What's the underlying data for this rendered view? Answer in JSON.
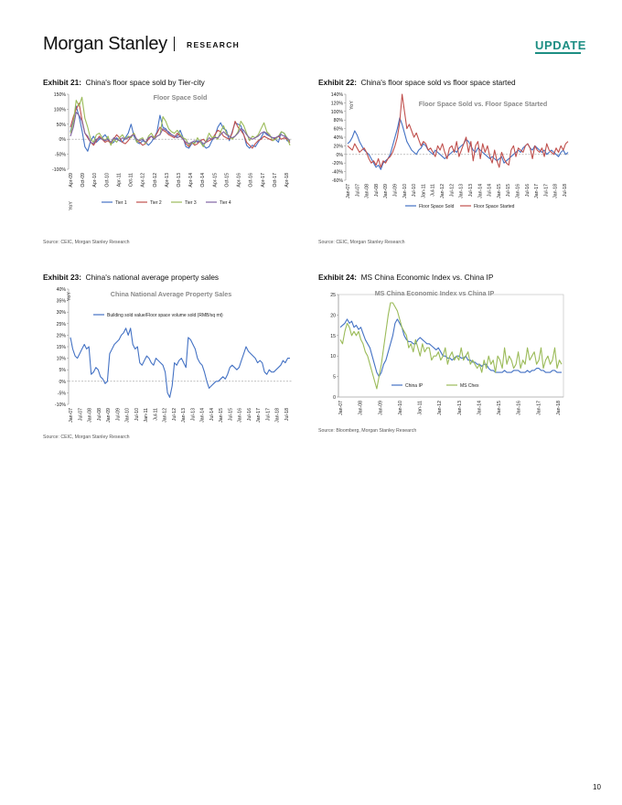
{
  "header": {
    "brand": "Morgan Stanley",
    "section": "RESEARCH",
    "badge": "UPDATE"
  },
  "page_number": "10",
  "colors": {
    "blue": "#4472c4",
    "red": "#c0504d",
    "green": "#9bbb59",
    "purple": "#8064a2",
    "teal": "#1d8e83"
  },
  "exhibits": [
    {
      "label": "Exhibit 21:",
      "title": "China's floor space sold by Tier-city",
      "source": "Source: CEIC, Morgan Stanley Research"
    },
    {
      "label": "Exhibit 22:",
      "title": "China's floor space sold vs floor space started",
      "source": "Source: CEIC, Morgan Stanley Research"
    },
    {
      "label": "Exhibit 23:",
      "title": "China's national average property sales",
      "source": "Source: CEIC, Morgan Stanley Research"
    },
    {
      "label": "Exhibit 24:",
      "title": "MS China Economic Index vs. China IP",
      "source": "Source: Bloomberg, Morgan Stanley Research"
    }
  ],
  "chart_data": [
    {
      "type": "line",
      "title": "Floor Space Sold",
      "ylabel": "YoY",
      "ylim": [
        -100,
        150
      ],
      "yticks": [
        "150%",
        "100%",
        "50%",
        "0%",
        "-50%",
        "-100%"
      ],
      "xticklabels": [
        "Apr-09",
        "Oct-09",
        "Apr-10",
        "Oct-10",
        "Apr-11",
        "Oct-11",
        "Apr-12",
        "Oct-12",
        "Apr-13",
        "Oct-13",
        "Apr-14",
        "Oct-14",
        "Apr-15",
        "Oct-15",
        "Apr-16",
        "Oct-16",
        "Apr-17",
        "Oct-17",
        "Apr-18"
      ],
      "x_start": "2009-04",
      "legend_position": "bottom-center",
      "series": [
        {
          "name": "Tier 1",
          "color": "#4472c4",
          "values": [
            25,
            60,
            110,
            75,
            30,
            -25,
            -40,
            -5,
            10,
            -10,
            0,
            5,
            15,
            0,
            -15,
            -10,
            5,
            -5,
            -10,
            5,
            20,
            50,
            10,
            -10,
            -15,
            -5,
            -10,
            -20,
            -10,
            5,
            25,
            80,
            40,
            35,
            20,
            15,
            10,
            10,
            30,
            5,
            -25,
            -30,
            -15,
            -10,
            -5,
            -10,
            -20,
            -30,
            -25,
            -5,
            10,
            40,
            55,
            35,
            30,
            -5,
            25,
            55,
            50,
            45,
            15,
            -20,
            -30,
            -20,
            -25,
            -10,
            5,
            25,
            15,
            10,
            5,
            0,
            -10,
            25,
            20,
            -5,
            -10
          ]
        },
        {
          "name": "Tier 2",
          "color": "#c0504d",
          "values": [
            40,
            75,
            100,
            120,
            65,
            20,
            5,
            -10,
            -20,
            -5,
            10,
            0,
            -10,
            -5,
            -15,
            0,
            15,
            5,
            -10,
            -15,
            -5,
            10,
            20,
            -5,
            -10,
            -20,
            -15,
            0,
            10,
            5,
            20,
            40,
            30,
            25,
            15,
            10,
            5,
            20,
            10,
            0,
            -15,
            -25,
            -10,
            -20,
            -15,
            -5,
            0,
            -10,
            -5,
            0,
            15,
            30,
            25,
            10,
            5,
            0,
            20,
            60,
            40,
            30,
            15,
            -10,
            -20,
            -30,
            -15,
            -5,
            0,
            10,
            5,
            0,
            -5,
            5,
            10,
            0,
            5,
            0,
            -10
          ]
        },
        {
          "name": "Tier 3",
          "color": "#9bbb59",
          "values": [
            20,
            55,
            130,
            110,
            140,
            70,
            40,
            0,
            -10,
            15,
            20,
            5,
            -5,
            10,
            -20,
            0,
            -10,
            5,
            15,
            0,
            10,
            5,
            20,
            -10,
            0,
            5,
            -15,
            10,
            20,
            5,
            10,
            15,
            75,
            60,
            35,
            25,
            20,
            30,
            15,
            5,
            0,
            -20,
            -10,
            -15,
            5,
            -10,
            -25,
            -5,
            20,
            5,
            10,
            0,
            25,
            45,
            20,
            10,
            0,
            10,
            25,
            60,
            45,
            20,
            -5,
            10,
            5,
            15,
            35,
            55,
            25,
            15,
            -5,
            0,
            10,
            25,
            20,
            5,
            -20
          ]
        },
        {
          "name": "Tier 4",
          "color": "#8064a2",
          "values": [
            10,
            40,
            90,
            80,
            60,
            20,
            10,
            -10,
            -15,
            0,
            5,
            0,
            -5,
            0,
            -10,
            5,
            0,
            -5,
            5,
            0,
            5,
            10,
            15,
            0,
            -5,
            0,
            -10,
            5,
            10,
            0,
            10,
            15,
            35,
            30,
            25,
            15,
            10,
            5,
            10,
            0,
            -10,
            -15,
            -10,
            -5,
            -10,
            -5,
            -15,
            -10,
            5,
            0,
            5,
            5,
            15,
            25,
            15,
            10,
            5,
            10,
            20,
            35,
            30,
            15,
            5,
            0,
            5,
            10,
            20,
            25,
            20,
            10,
            5,
            5,
            10,
            15,
            10,
            5,
            -5
          ]
        }
      ]
    },
    {
      "type": "line",
      "title": "Floor Space Sold vs. Floor Space Started",
      "ylabel": "YoY",
      "ylim": [
        -60,
        140
      ],
      "yticks": [
        "140%",
        "120%",
        "100%",
        "80%",
        "60%",
        "40%",
        "20%",
        "0%",
        "-20%",
        "-40%",
        "-60%"
      ],
      "xticklabels": [
        "Jan-07",
        "Jul-07",
        "Jan-08",
        "Jul-08",
        "Jan-09",
        "Jul-09",
        "Jan-10",
        "Jul-10",
        "Jan-11",
        "Jul-11",
        "Jan-12",
        "Jul-12",
        "Jan-13",
        "Jul-13",
        "Jan-14",
        "Jul-14",
        "Jan-15",
        "Jul-15",
        "Jan-16",
        "Jul-16",
        "Jan-17",
        "Jul-17",
        "Jan-18",
        "Jul-18"
      ],
      "x_start": "2007-01",
      "legend_position": "bottom-center",
      "series": [
        {
          "name": "Floor Space Sold",
          "color": "#4472c4",
          "values": [
            25,
            30,
            40,
            55,
            45,
            30,
            20,
            10,
            5,
            0,
            -10,
            -20,
            -30,
            -25,
            -35,
            -20,
            -15,
            -10,
            0,
            20,
            40,
            60,
            85,
            70,
            50,
            30,
            20,
            10,
            5,
            0,
            10,
            15,
            25,
            20,
            10,
            5,
            0,
            10,
            5,
            0,
            -5,
            -10,
            -5,
            0,
            5,
            10,
            5,
            15,
            20,
            25,
            35,
            30,
            20,
            10,
            5,
            15,
            10,
            5,
            0,
            -5,
            -10,
            -5,
            -10,
            -15,
            -10,
            -5,
            -20,
            -15,
            -10,
            -5,
            0,
            5,
            10,
            5,
            15,
            20,
            25,
            15,
            10,
            20,
            15,
            10,
            5,
            10,
            0,
            5,
            10,
            5,
            0,
            -5,
            5,
            10,
            0,
            5
          ]
        },
        {
          "name": "Floor Space Started",
          "color": "#c0504d",
          "values": [
            20,
            15,
            10,
            25,
            15,
            5,
            10,
            15,
            5,
            -10,
            -20,
            -15,
            -25,
            -10,
            -30,
            -15,
            -20,
            -10,
            -5,
            5,
            20,
            40,
            75,
            140,
            100,
            60,
            70,
            55,
            40,
            50,
            35,
            20,
            30,
            25,
            10,
            15,
            5,
            -5,
            20,
            10,
            25,
            5,
            -10,
            15,
            20,
            5,
            30,
            -5,
            10,
            25,
            40,
            5,
            30,
            -15,
            20,
            30,
            -10,
            25,
            5,
            20,
            -5,
            -20,
            10,
            -15,
            -30,
            5,
            -10,
            -20,
            -25,
            10,
            20,
            -5,
            15,
            10,
            5,
            20,
            25,
            15,
            -10,
            20,
            10,
            5,
            15,
            -5,
            25,
            10,
            5,
            0,
            15,
            5,
            20,
            10,
            25,
            30
          ]
        }
      ]
    },
    {
      "type": "line",
      "title": "China National Average Property Sales",
      "ylabel": "YoY",
      "ylim": [
        -10,
        40
      ],
      "yticks": [
        "40%",
        "35%",
        "30%",
        "25%",
        "20%",
        "15%",
        "10%",
        "5%",
        "0%",
        "-5%",
        "-10%"
      ],
      "xticklabels": [
        "Jan-07",
        "Jul-07",
        "Jan-08",
        "Jul-08",
        "Jan-09",
        "Jul-09",
        "Jan-10",
        "Jul-10",
        "Jan-11",
        "Jul-11",
        "Jan-12",
        "Jul-12",
        "Jan-13",
        "Jul-13",
        "Jan-14",
        "Jul-14",
        "Jan-15",
        "Jul-15",
        "Jan-16",
        "Jul-16",
        "Jan-17",
        "Jul-17",
        "Jan-18",
        "Jul-18"
      ],
      "x_start": "2007-01",
      "legend_position": "top-right",
      "series": [
        {
          "name": "Building sold value/Floor space volume sold (RMB/sq mt)",
          "color": "#4472c4",
          "values": [
            19,
            14,
            11,
            10,
            12,
            14,
            16,
            14,
            15,
            3,
            4,
            6,
            5,
            2,
            1,
            -1,
            0,
            12,
            14,
            16,
            17,
            18,
            20,
            21,
            23,
            20,
            23,
            16,
            14,
            15,
            8,
            7,
            9,
            11,
            10,
            8,
            7,
            10,
            9,
            8,
            7,
            4,
            -5,
            -7,
            -2,
            8,
            7,
            9,
            10,
            8,
            6,
            19,
            18,
            16,
            14,
            10,
            8,
            7,
            4,
            0,
            -3,
            -2,
            -1,
            0,
            0,
            1,
            2,
            1,
            3,
            6,
            7,
            6,
            5,
            6,
            9,
            12,
            15,
            13,
            12,
            11,
            10,
            8,
            9,
            8,
            4,
            3,
            5,
            4,
            4,
            5,
            6,
            7,
            9,
            8,
            10,
            10
          ]
        }
      ]
    },
    {
      "type": "line",
      "title": "MS China Economic Index vs China IP",
      "ylabel": "",
      "ylim": [
        0,
        25
      ],
      "yticks": [
        "25",
        "20",
        "15",
        "10",
        "5",
        "0"
      ],
      "xticklabels": [
        "Jan-07",
        "Jan-08",
        "Jan-09",
        "Jan-10",
        "Jan-11",
        "Jan-12",
        "Jan-13",
        "Jan-14",
        "Jan-15",
        "Jan-16",
        "Jan-17",
        "Jan-18"
      ],
      "x_start": "2007-01",
      "legend_position": "bottom-center",
      "series": [
        {
          "name": "China IP",
          "color": "#4472c4",
          "values": [
            17,
            17.5,
            18,
            19,
            18,
            18.5,
            17,
            17.5,
            16.5,
            17,
            15.5,
            14,
            13,
            12,
            10,
            8,
            6,
            5,
            6,
            8,
            9,
            11,
            13,
            15,
            18,
            19,
            18,
            17,
            15,
            14,
            13.5,
            13.5,
            13,
            13,
            14,
            14.5,
            14,
            13.5,
            13,
            13,
            12.5,
            12,
            11.5,
            12,
            11,
            10,
            10,
            9.5,
            9.5,
            9,
            9.5,
            10,
            10,
            9.5,
            9.5,
            10,
            9,
            9,
            8.5,
            8.5,
            8,
            8,
            7.5,
            8,
            8,
            7,
            6.5,
            6.5,
            6,
            6,
            6,
            6,
            6.5,
            6,
            6,
            6,
            6.5,
            6.5,
            6.5,
            6,
            6,
            6,
            6.5,
            6,
            6.5,
            6.5,
            7,
            7,
            6.5,
            6.5,
            6,
            6,
            6,
            6.5,
            6.5,
            6,
            6,
            6
          ]
        },
        {
          "name": "MS Chex",
          "color": "#9bbb59",
          "values": [
            14,
            13,
            16,
            18,
            17,
            15,
            16,
            15,
            16,
            14,
            13,
            11,
            10,
            8,
            6,
            4,
            2,
            5,
            8,
            12,
            16,
            20,
            23,
            23,
            22,
            21,
            19,
            17,
            16,
            15,
            12,
            13,
            11,
            14,
            12,
            10,
            13,
            11,
            12,
            12,
            9,
            10,
            10,
            11,
            9,
            10,
            12,
            8,
            10,
            11,
            9,
            10,
            9,
            12,
            9,
            10,
            11,
            8,
            9,
            8,
            7,
            8,
            6,
            9,
            7,
            10,
            8,
            9,
            6,
            10,
            9,
            7,
            12,
            8,
            10,
            9,
            7,
            8,
            11,
            7,
            9,
            8,
            12,
            9,
            10,
            11,
            8,
            9,
            12,
            7,
            9,
            10,
            8,
            9,
            12,
            7,
            9,
            8
          ]
        }
      ]
    }
  ]
}
